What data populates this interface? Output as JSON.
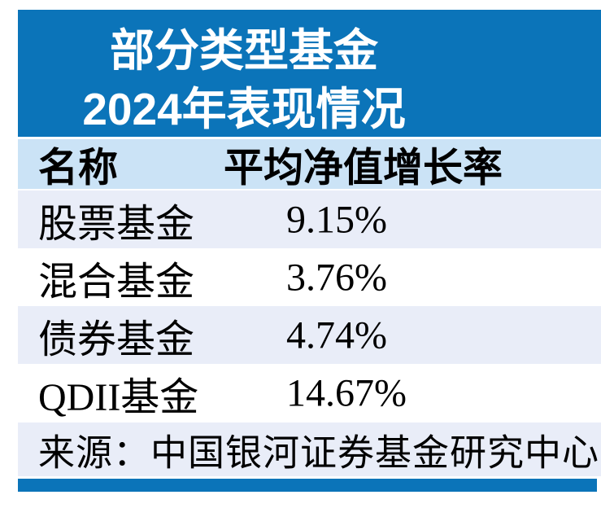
{
  "title": {
    "line1": "部分类型基金",
    "line2": "2024年表现情况"
  },
  "table": {
    "columns": [
      {
        "label": "名称"
      },
      {
        "label": "平均净值增长率"
      }
    ],
    "rows": [
      {
        "name": "股票基金",
        "value": "9.15%"
      },
      {
        "name": "混合基金",
        "value": "3.76%"
      },
      {
        "name": "债券基金",
        "value": "4.74%"
      },
      {
        "name": "QDII基金",
        "value": "14.67%"
      }
    ]
  },
  "source": {
    "label": "来源：中国银河证券基金研究中心"
  },
  "colors": {
    "primary_blue": "#0b74b9",
    "header_row_bg": "#cbe3f6",
    "alt_row_bg": "#e9edf8",
    "title_text": "#ffffff",
    "body_text": "#000000"
  },
  "chart_data": {
    "type": "table",
    "title": "部分类型基金2024年表现情况",
    "columns": [
      "名称",
      "平均净值增长率"
    ],
    "rows": [
      [
        "股票基金",
        "9.15%"
      ],
      [
        "混合基金",
        "3.76%"
      ],
      [
        "债券基金",
        "4.74%"
      ],
      [
        "QDII基金",
        "14.67%"
      ]
    ],
    "values_numeric_percent": [
      9.15,
      3.76,
      4.74,
      14.67
    ],
    "source": "来源：中国银河证券基金研究中心",
    "layout_hints": {
      "zebra_striping": true,
      "header_bg": "#cbe3f6",
      "title_bg": "#0b74b9"
    }
  }
}
